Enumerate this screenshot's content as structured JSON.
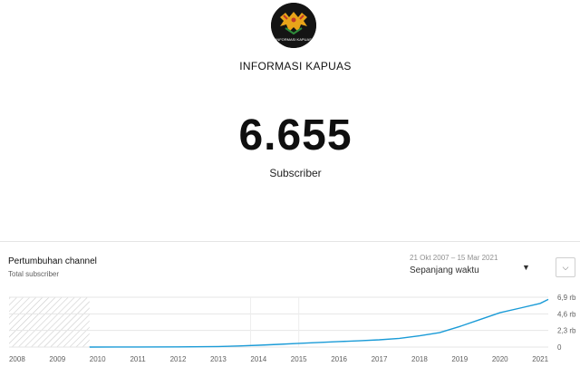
{
  "channel": {
    "name": "INFORMASI KAPUAS",
    "logo_text": "INFORMASI KAPUAS",
    "subscriber_count": "6.655",
    "subscriber_label": "Subscriber"
  },
  "growth_panel": {
    "title": "Pertumbuhan channel",
    "subtitle": "Total subscriber",
    "date_range": "21 Okt 2007 – 15 Mar 2021",
    "range_select": "Sepanjang waktu",
    "caret_icon": "caret-down-icon",
    "expand_icon": "chevron-down-icon"
  },
  "colors": {
    "line": "#1a9bd7",
    "grid": "#e6e6e6",
    "hatch": "#cccccc"
  },
  "chart_data": {
    "type": "line",
    "title": "",
    "xlabel": "",
    "ylabel": "",
    "x_ticks": [
      "2008",
      "2009",
      "2010",
      "2011",
      "2012",
      "2013",
      "2014",
      "2015",
      "2016",
      "2017",
      "2018",
      "2019",
      "2020",
      "2021"
    ],
    "y_ticks": [
      "0",
      "2,3 rb",
      "4,6 rb",
      "6,9 rb"
    ],
    "y_tick_values": [
      0,
      2300,
      4600,
      6900
    ],
    "ylim": [
      0,
      6900
    ],
    "xlim": [
      2007.8,
      2021.2
    ],
    "no_data_range": [
      2007.8,
      2009.8
    ],
    "grid": true,
    "series": [
      {
        "x": [
          2009.8,
          2011.0,
          2012.0,
          2013.0,
          2013.5,
          2014.0,
          2014.5,
          2015.0,
          2015.5,
          2016.0,
          2016.5,
          2017.0,
          2017.5,
          2018.0,
          2018.5,
          2019.0,
          2019.5,
          2020.0,
          2020.5,
          2021.0,
          2021.2
        ],
        "y": [
          0,
          10,
          30,
          80,
          150,
          250,
          380,
          520,
          640,
          760,
          860,
          1000,
          1200,
          1550,
          2000,
          2850,
          3800,
          4750,
          5400,
          6050,
          6600
        ]
      }
    ]
  }
}
